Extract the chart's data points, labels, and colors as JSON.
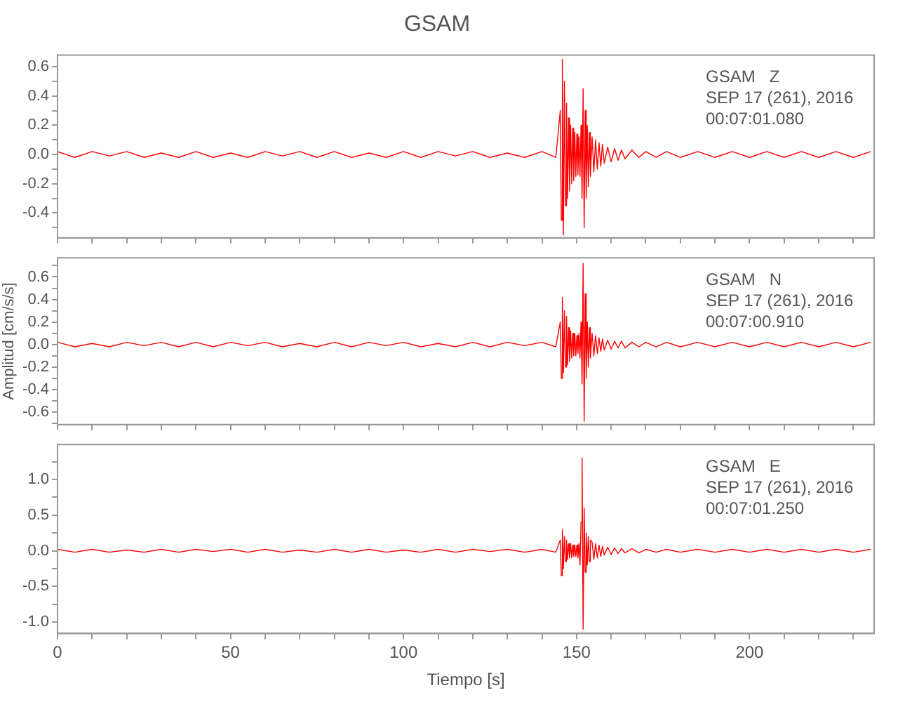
{
  "chart_data": [
    {
      "type": "line",
      "title": "GSAM",
      "annotations": [
        "GSAM   Z",
        "SEP 17 (261), 2016",
        "00:07:01.080"
      ],
      "tick_labels": "y",
      "xlim": [
        0,
        236
      ],
      "xticks": [
        0,
        {
          "value": 10,
          "label": null
        },
        {
          "value": 20,
          "label": null
        },
        {
          "value": 30,
          "label": null
        },
        {
          "value": 40,
          "label": null
        },
        50,
        {
          "value": 60,
          "label": null
        },
        {
          "value": 70,
          "label": null
        },
        {
          "value": 80,
          "label": null
        },
        {
          "value": 90,
          "label": null
        },
        100,
        {
          "value": 110,
          "label": null
        },
        {
          "value": 120,
          "label": null
        },
        {
          "value": 130,
          "label": null
        },
        {
          "value": 140,
          "label": null
        },
        150,
        {
          "value": 160,
          "label": null
        },
        {
          "value": 170,
          "label": null
        },
        {
          "value": 180,
          "label": null
        },
        {
          "value": 190,
          "label": null
        },
        200,
        {
          "value": 210,
          "label": null
        },
        {
          "value": 220,
          "label": null
        },
        {
          "value": 230,
          "label": null
        }
      ],
      "ylim": [
        -0.57,
        0.68
      ],
      "yticks": [
        {
          "value": -0.5,
          "label": null
        },
        -0.4,
        {
          "value": -0.3,
          "label": null
        },
        -0.2,
        {
          "value": -0.1,
          "label": null
        },
        {
          "value": 0,
          "label": "0.0"
        },
        {
          "value": 0.1,
          "label": null
        },
        0.2,
        {
          "value": 0.3,
          "label": null
        },
        0.4,
        {
          "value": 0.5,
          "label": null
        },
        0.6
      ],
      "x": [
        0,
        5,
        10,
        15,
        20,
        25,
        30,
        35,
        40,
        45,
        50,
        55,
        60,
        65,
        70,
        75,
        80,
        85,
        90,
        95,
        100,
        105,
        110,
        115,
        120,
        125,
        130,
        135,
        140,
        144,
        145.3,
        145.6,
        145.9,
        146.2,
        146.5,
        146.8,
        147.1,
        147.4,
        147.7,
        148,
        148.3,
        148.6,
        148.9,
        149.2,
        149.5,
        149.8,
        150.1,
        150.4,
        150.7,
        151,
        151.3,
        151.6,
        151.9,
        152.2,
        152.5,
        152.8,
        153.1,
        153.4,
        153.7,
        154,
        154.5,
        155,
        155.5,
        156,
        156.5,
        157,
        157.5,
        158,
        159,
        160,
        161,
        162,
        163,
        164,
        166,
        168,
        170,
        173,
        176,
        180,
        185,
        190,
        195,
        200,
        205,
        210,
        215,
        220,
        225,
        230,
        235
      ],
      "series": [
        {
          "color": "#ff0000",
          "values": [
            0.02,
            -0.02,
            0.02,
            -0.01,
            0.02,
            -0.02,
            0.01,
            -0.02,
            0.02,
            -0.02,
            0.01,
            -0.02,
            0.02,
            -0.01,
            0.02,
            -0.02,
            0.02,
            -0.02,
            0.01,
            -0.02,
            0.02,
            -0.02,
            0.02,
            -0.01,
            0.02,
            -0.02,
            0.01,
            -0.02,
            0.02,
            -0.02,
            0.3,
            -0.45,
            0.65,
            -0.55,
            0.5,
            -0.35,
            0.35,
            -0.3,
            0.25,
            -0.25,
            0.2,
            -0.2,
            0.18,
            -0.18,
            0.15,
            -0.15,
            0.14,
            -0.14,
            0.12,
            -0.15,
            0.2,
            -0.3,
            0.45,
            -0.5,
            0.3,
            -0.3,
            0.2,
            -0.22,
            0.15,
            -0.15,
            0.12,
            -0.12,
            0.1,
            -0.1,
            0.08,
            -0.08,
            0.07,
            -0.06,
            0.05,
            -0.05,
            0.04,
            -0.04,
            0.03,
            -0.03,
            0.03,
            -0.02,
            0.02,
            -0.02,
            0.02,
            -0.02,
            0.02,
            -0.02,
            0.02,
            -0.02,
            0.02,
            -0.02,
            0.02,
            -0.02,
            0.02,
            -0.02,
            0.02
          ]
        }
      ]
    },
    {
      "type": "line",
      "ylabel": "Amplitud [cm/s/s]",
      "annotations": [
        "GSAM   N",
        "SEP 17 (261), 2016",
        "00:07:00.910"
      ],
      "tick_labels": "y",
      "xlim": [
        0,
        236
      ],
      "xticks": [
        0,
        {
          "value": 10,
          "label": null
        },
        {
          "value": 20,
          "label": null
        },
        {
          "value": 30,
          "label": null
        },
        {
          "value": 40,
          "label": null
        },
        50,
        {
          "value": 60,
          "label": null
        },
        {
          "value": 70,
          "label": null
        },
        {
          "value": 80,
          "label": null
        },
        {
          "value": 90,
          "label": null
        },
        100,
        {
          "value": 110,
          "label": null
        },
        {
          "value": 120,
          "label": null
        },
        {
          "value": 130,
          "label": null
        },
        {
          "value": 140,
          "label": null
        },
        150,
        {
          "value": 160,
          "label": null
        },
        {
          "value": 170,
          "label": null
        },
        {
          "value": 180,
          "label": null
        },
        {
          "value": 190,
          "label": null
        },
        200,
        {
          "value": 210,
          "label": null
        },
        {
          "value": 220,
          "label": null
        },
        {
          "value": 230,
          "label": null
        }
      ],
      "ylim": [
        -0.71,
        0.77
      ],
      "yticks": [
        {
          "value": -0.7,
          "label": null
        },
        -0.6,
        {
          "value": -0.5,
          "label": null
        },
        -0.4,
        {
          "value": -0.3,
          "label": null
        },
        -0.2,
        {
          "value": -0.1,
          "label": null
        },
        {
          "value": 0,
          "label": "0.0"
        },
        {
          "value": 0.1,
          "label": null
        },
        0.2,
        {
          "value": 0.3,
          "label": null
        },
        0.4,
        {
          "value": 0.5,
          "label": null
        },
        0.6,
        {
          "value": 0.7,
          "label": null
        }
      ],
      "x": [
        0,
        5,
        10,
        15,
        20,
        25,
        30,
        35,
        40,
        45,
        50,
        55,
        60,
        65,
        70,
        75,
        80,
        85,
        90,
        95,
        100,
        105,
        110,
        115,
        120,
        125,
        130,
        135,
        140,
        144,
        145.3,
        145.6,
        145.9,
        146.2,
        146.5,
        146.8,
        147.1,
        147.4,
        147.7,
        148,
        148.3,
        148.6,
        148.9,
        149.2,
        149.5,
        149.8,
        150.1,
        150.4,
        150.7,
        151,
        151.3,
        151.6,
        151.9,
        152.2,
        152.5,
        152.8,
        153.1,
        153.4,
        153.7,
        154,
        154.5,
        155,
        155.5,
        156,
        156.5,
        157,
        157.5,
        158,
        159,
        160,
        161,
        162,
        163,
        164,
        166,
        168,
        170,
        173,
        176,
        180,
        185,
        190,
        195,
        200,
        205,
        210,
        215,
        220,
        225,
        230,
        235
      ],
      "series": [
        {
          "color": "#ff0000",
          "values": [
            0.02,
            -0.02,
            0.01,
            -0.02,
            0.02,
            -0.01,
            0.02,
            -0.02,
            0.02,
            -0.02,
            0.02,
            -0.01,
            0.02,
            -0.02,
            0.01,
            -0.02,
            0.02,
            -0.02,
            0.02,
            -0.01,
            0.02,
            -0.02,
            0.01,
            -0.02,
            0.02,
            -0.02,
            0.02,
            -0.01,
            0.02,
            -0.02,
            0.2,
            -0.3,
            0.42,
            -0.25,
            0.3,
            -0.2,
            0.25,
            -0.18,
            0.15,
            -0.15,
            0.12,
            -0.12,
            0.1,
            -0.1,
            0.1,
            -0.1,
            0.08,
            -0.08,
            0.1,
            -0.12,
            0.2,
            -0.35,
            0.72,
            -0.68,
            0.45,
            -0.3,
            0.2,
            -0.2,
            0.15,
            -0.12,
            0.1,
            -0.1,
            0.08,
            -0.08,
            0.06,
            -0.06,
            0.05,
            -0.05,
            0.04,
            -0.04,
            0.03,
            -0.03,
            0.03,
            -0.03,
            0.02,
            -0.02,
            0.02,
            -0.02,
            0.02,
            -0.02,
            0.02,
            -0.02,
            0.02,
            -0.02,
            0.02,
            -0.02,
            0.02,
            -0.02,
            0.02,
            -0.02,
            0.02
          ]
        }
      ]
    },
    {
      "type": "line",
      "xlabel": "Tiempo [s]",
      "annotations": [
        "GSAM   E",
        "SEP 17 (261), 2016",
        "00:07:01.250"
      ],
      "xlim": [
        0,
        236
      ],
      "xticks": [
        0,
        {
          "value": 10,
          "label": null
        },
        {
          "value": 20,
          "label": null
        },
        {
          "value": 30,
          "label": null
        },
        {
          "value": 40,
          "label": null
        },
        50,
        {
          "value": 60,
          "label": null
        },
        {
          "value": 70,
          "label": null
        },
        {
          "value": 80,
          "label": null
        },
        {
          "value": 90,
          "label": null
        },
        100,
        {
          "value": 110,
          "label": null
        },
        {
          "value": 120,
          "label": null
        },
        {
          "value": 130,
          "label": null
        },
        {
          "value": 140,
          "label": null
        },
        150,
        {
          "value": 160,
          "label": null
        },
        {
          "value": 170,
          "label": null
        },
        {
          "value": 180,
          "label": null
        },
        {
          "value": 190,
          "label": null
        },
        200,
        {
          "value": 210,
          "label": null
        },
        {
          "value": 220,
          "label": null
        },
        {
          "value": 230,
          "label": null
        }
      ],
      "ylim": [
        -1.16,
        1.49
      ],
      "yticks": [
        {
          "value": -1,
          "label": "-1.0"
        },
        {
          "value": -0.75,
          "label": null
        },
        -0.5,
        {
          "value": -0.25,
          "label": null
        },
        {
          "value": 0,
          "label": "0.0"
        },
        {
          "value": 0.25,
          "label": null
        },
        0.5,
        {
          "value": 0.75,
          "label": null
        },
        {
          "value": 1,
          "label": "1.0"
        },
        {
          "value": 1.25,
          "label": null
        }
      ],
      "x": [
        0,
        5,
        10,
        15,
        20,
        25,
        30,
        35,
        40,
        45,
        50,
        55,
        60,
        65,
        70,
        75,
        80,
        85,
        90,
        95,
        100,
        105,
        110,
        115,
        120,
        125,
        130,
        135,
        140,
        144,
        145.3,
        145.6,
        145.9,
        146.2,
        146.5,
        146.8,
        147.1,
        147.4,
        147.7,
        148,
        148.3,
        148.6,
        148.9,
        149.2,
        149.5,
        149.8,
        150.1,
        150.4,
        150.7,
        151,
        151.3,
        151.6,
        151.9,
        152.2,
        152.5,
        152.8,
        153.1,
        153.4,
        153.7,
        154,
        154.5,
        155,
        155.5,
        156,
        156.5,
        157,
        157.5,
        158,
        159,
        160,
        161,
        162,
        163,
        164,
        166,
        168,
        170,
        173,
        176,
        180,
        185,
        190,
        195,
        200,
        205,
        210,
        215,
        220,
        225,
        230,
        235
      ],
      "series": [
        {
          "color": "#ff0000",
          "values": [
            0.02,
            -0.02,
            0.02,
            -0.02,
            0.01,
            -0.02,
            0.02,
            -0.02,
            0.02,
            -0.01,
            0.02,
            -0.02,
            0.02,
            -0.02,
            0.01,
            -0.02,
            0.02,
            -0.02,
            0.02,
            -0.02,
            0.01,
            -0.02,
            0.02,
            -0.02,
            0.02,
            -0.01,
            0.02,
            -0.02,
            0.02,
            -0.02,
            0.15,
            -0.35,
            0.3,
            -0.25,
            0.2,
            -0.15,
            0.15,
            -0.12,
            0.1,
            -0.1,
            0.1,
            -0.1,
            0.08,
            -0.08,
            0.08,
            -0.08,
            0.08,
            -0.1,
            0.1,
            -0.2,
            0.4,
            1.3,
            -1.1,
            0.6,
            -0.3,
            0.25,
            -0.2,
            0.2,
            -0.15,
            0.15,
            0.12,
            -0.12,
            0.1,
            -0.1,
            0.08,
            -0.08,
            0.06,
            -0.06,
            0.05,
            -0.05,
            0.04,
            -0.04,
            0.03,
            -0.03,
            0.03,
            -0.03,
            0.02,
            -0.02,
            0.02,
            -0.02,
            0.02,
            -0.02,
            0.02,
            -0.02,
            0.02,
            -0.02,
            0.02,
            -0.02,
            0.02,
            -0.02,
            0.02
          ]
        }
      ]
    }
  ]
}
